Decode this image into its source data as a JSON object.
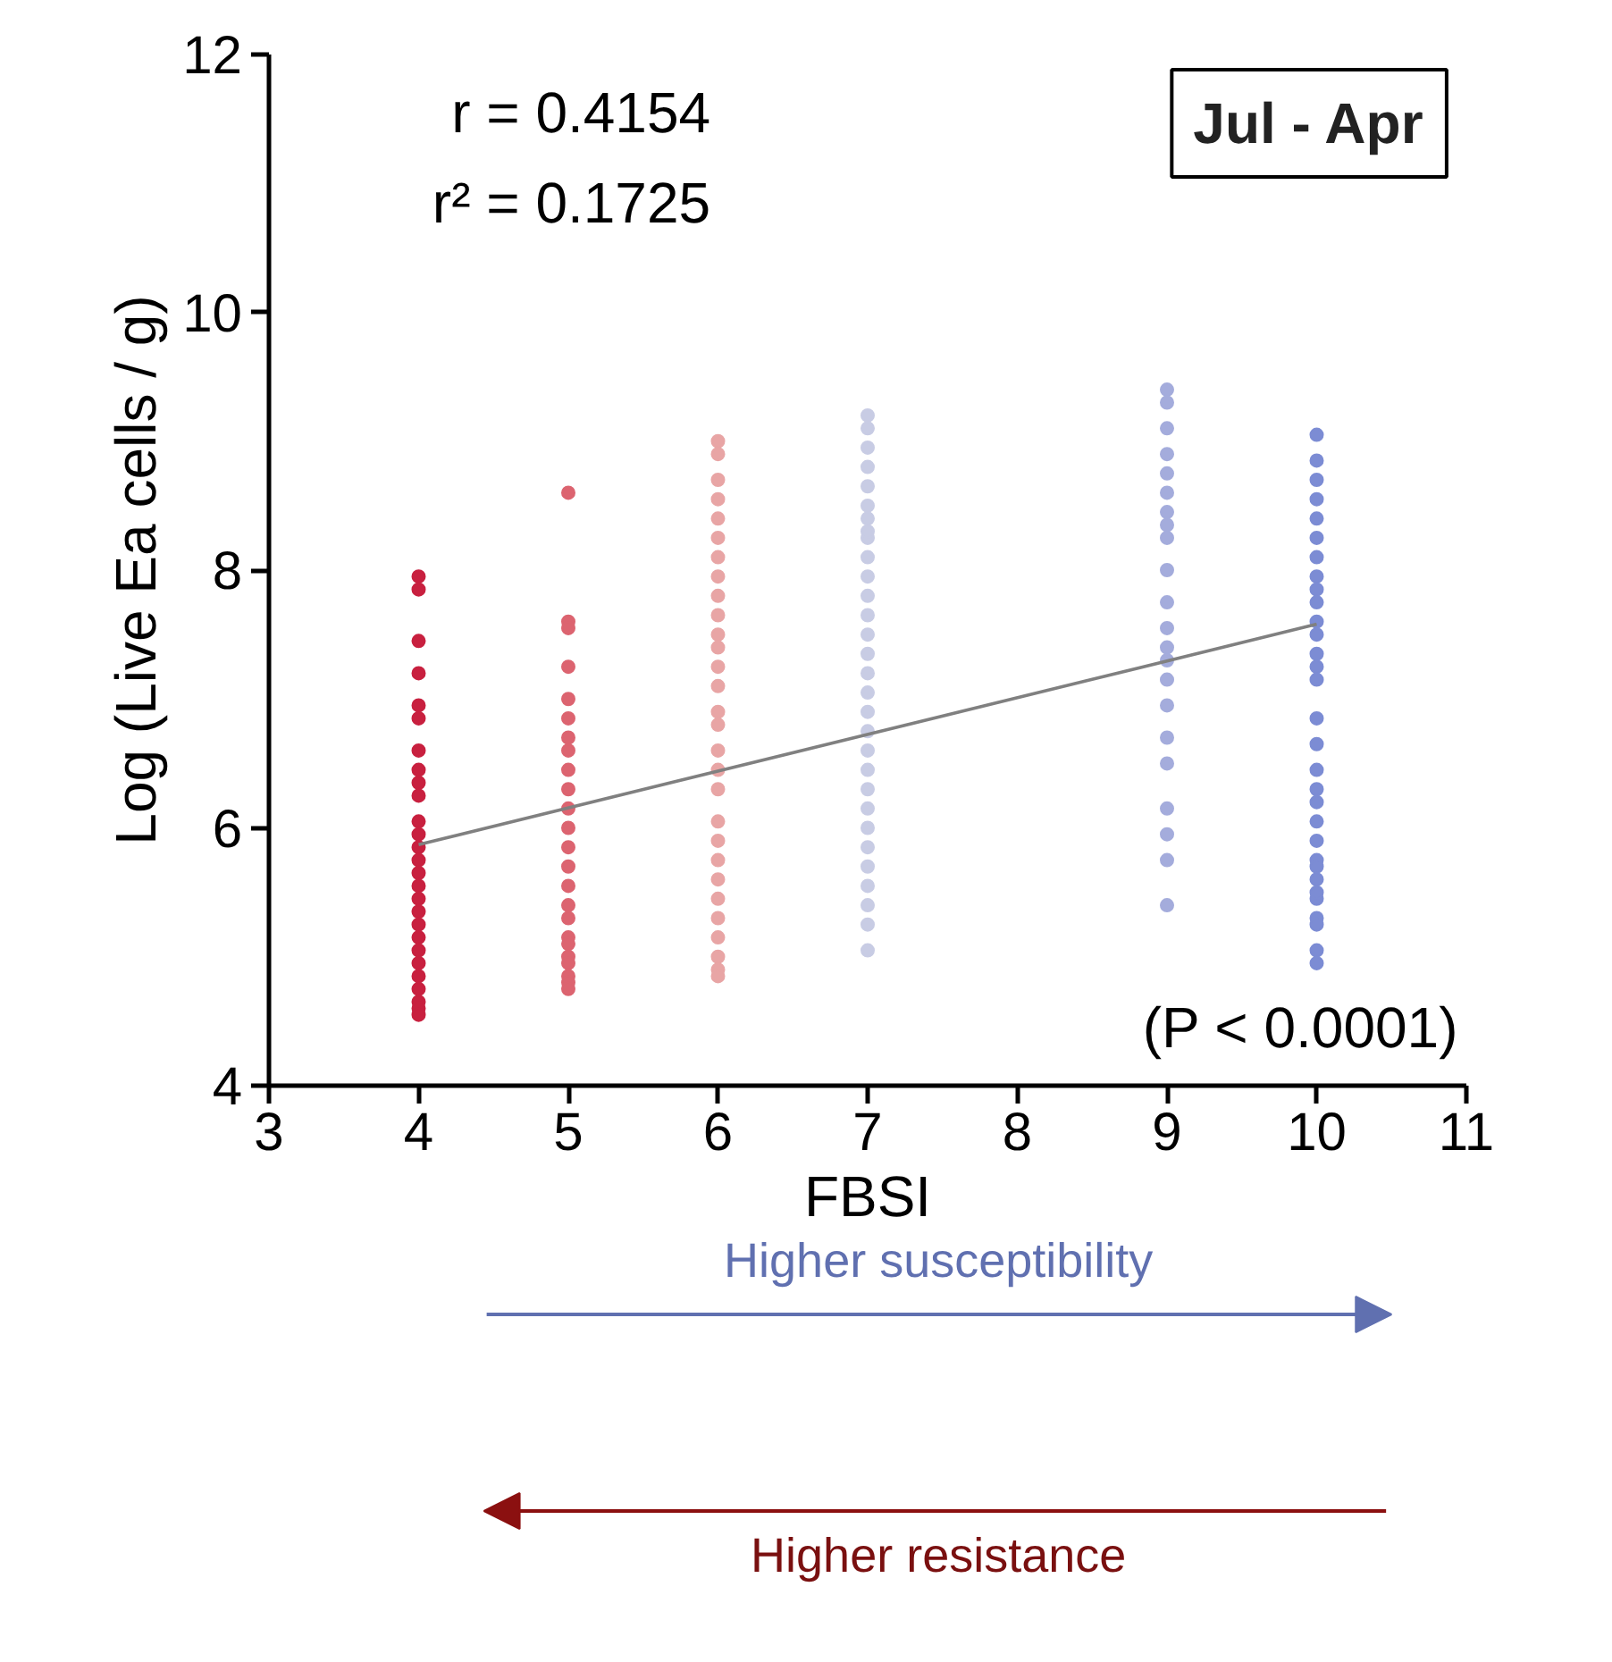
{
  "chart_data": {
    "type": "scatter",
    "title": "Jul - Apr",
    "xlabel": "FBSI",
    "ylabel": "Log (Live Ea cells / g)",
    "annotations": [
      "r = 0.4154",
      "r² = 0.1725",
      "(P < 0.0001)",
      "Higher susceptibility",
      "Higher resistance"
    ],
    "series": [
      {
        "color": "#c8203f",
        "x": [
          4,
          4,
          4,
          4,
          4,
          4,
          4,
          4,
          4,
          4,
          4,
          4,
          4,
          4,
          4,
          4,
          4,
          4,
          4,
          4,
          4,
          4,
          4,
          4,
          4,
          4,
          4
        ],
        "values": [
          7.95,
          7.85,
          7.45,
          7.2,
          6.95,
          6.85,
          6.6,
          6.45,
          6.35,
          6.25,
          6.05,
          5.95,
          5.85,
          5.75,
          5.65,
          5.55,
          5.45,
          5.35,
          5.25,
          5.15,
          5.05,
          4.95,
          4.85,
          4.75,
          4.65,
          4.6,
          4.55
        ]
      },
      {
        "color": "#dc6470",
        "x": [
          5,
          5,
          5,
          5,
          5,
          5,
          5,
          5,
          5,
          5,
          5,
          5,
          5,
          5,
          5,
          5,
          5,
          5,
          5,
          5,
          5,
          5,
          5,
          5
        ],
        "values": [
          8.6,
          7.6,
          7.55,
          7.25,
          7.0,
          6.85,
          6.7,
          6.6,
          6.45,
          6.3,
          6.15,
          6.0,
          5.85,
          5.7,
          5.55,
          5.4,
          5.3,
          5.15,
          5.1,
          5.0,
          4.95,
          4.85,
          4.8,
          4.75
        ]
      },
      {
        "color": "#e8a5a5",
        "x": [
          6,
          6,
          6,
          6,
          6,
          6,
          6,
          6,
          6,
          6,
          6,
          6,
          6,
          6,
          6,
          6,
          6,
          6,
          6,
          6,
          6,
          6,
          6,
          6,
          6,
          6,
          6,
          6,
          6
        ],
        "values": [
          9.0,
          8.9,
          8.7,
          8.55,
          8.4,
          8.25,
          8.1,
          7.95,
          7.8,
          7.65,
          7.5,
          7.4,
          7.25,
          7.1,
          6.9,
          6.8,
          6.6,
          6.45,
          6.3,
          6.05,
          5.9,
          5.75,
          5.6,
          5.45,
          5.3,
          5.15,
          5.0,
          4.9,
          4.85
        ]
      },
      {
        "color": "#c8cce4",
        "x": [
          7,
          7,
          7,
          7,
          7,
          7,
          7,
          7,
          7,
          7,
          7,
          7,
          7,
          7,
          7,
          7,
          7,
          7,
          7,
          7,
          7,
          7,
          7,
          7,
          7,
          7,
          7,
          7,
          7,
          7
        ],
        "values": [
          9.2,
          9.1,
          8.95,
          8.8,
          8.65,
          8.5,
          8.4,
          8.25,
          8.1,
          7.95,
          7.8,
          7.65,
          7.5,
          7.35,
          7.2,
          7.05,
          6.9,
          6.75,
          6.6,
          6.45,
          6.3,
          6.15,
          6.0,
          5.85,
          5.7,
          5.55,
          5.4,
          5.25,
          5.05,
          8.3
        ]
      },
      {
        "color": "#a4acdc",
        "x": [
          9,
          9,
          9,
          9,
          9,
          9,
          9,
          9,
          9,
          9,
          9,
          9,
          9,
          9,
          9,
          9,
          9,
          9,
          9,
          9,
          9,
          9
        ],
        "values": [
          9.4,
          9.3,
          9.1,
          8.9,
          8.75,
          8.6,
          8.45,
          8.35,
          8.25,
          8.0,
          7.75,
          7.55,
          7.4,
          7.3,
          7.15,
          6.95,
          6.7,
          6.5,
          6.15,
          5.95,
          5.75,
          5.4
        ]
      },
      {
        "color": "#7c8cd4",
        "x": [
          10,
          10,
          10,
          10,
          10,
          10,
          10,
          10,
          10,
          10,
          10,
          10,
          10,
          10,
          10,
          10,
          10,
          10,
          10,
          10,
          10,
          10,
          10,
          10,
          10,
          10,
          10,
          10,
          10,
          10,
          10
        ],
        "values": [
          9.05,
          8.85,
          8.7,
          8.55,
          8.4,
          8.25,
          8.1,
          7.95,
          7.85,
          7.75,
          7.6,
          7.5,
          7.35,
          7.25,
          7.15,
          6.85,
          6.65,
          6.45,
          6.3,
          6.2,
          6.05,
          5.9,
          5.75,
          5.6,
          5.45,
          5.3,
          5.25,
          5.05,
          4.95,
          5.7,
          5.5
        ]
      },
      {
        "type": "line",
        "marker": "none",
        "color": "#808080",
        "x": [
          4,
          10
        ],
        "values": [
          5.87,
          7.58
        ]
      }
    ],
    "marker": "circle",
    "grid": false,
    "xlim": [
      3,
      11
    ],
    "xticks": [
      3,
      4,
      5,
      6,
      7,
      8,
      9,
      10,
      11
    ],
    "ylim": [
      4,
      12
    ],
    "yticks": [
      4,
      6,
      8,
      10,
      12
    ]
  }
}
